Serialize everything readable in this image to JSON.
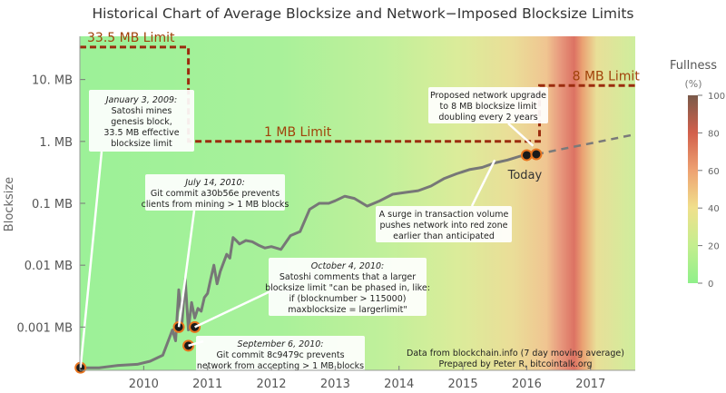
{
  "chart_data": {
    "type": "line",
    "title": "Historical Chart of Average Blocksize and Network−Imposed Blocksize Limits",
    "ylabel": "Blocksize",
    "y_scale": "log",
    "y_unit": "MB",
    "ylim": [
      0.0002,
      50
    ],
    "xlim": [
      2009.0,
      2017.7
    ],
    "x_ticks": [
      "2010",
      "2011",
      "2012",
      "2013",
      "2014",
      "2015",
      "2016",
      "2017"
    ],
    "y_ticks": [
      "0.001 MB",
      "0.01 MB",
      "0.1 MB",
      "1. MB",
      "10. MB"
    ],
    "colorbar": {
      "title": "Fullness",
      "unit": "(%)",
      "ticks": [
        "100",
        "80",
        "60",
        "40",
        "20",
        "0"
      ]
    },
    "series": [
      {
        "x": [
          2009.0,
          2009.3,
          2009.6,
          2009.9,
          2010.1,
          2010.3,
          2010.45,
          2010.5,
          2010.55,
          2010.6,
          2010.65,
          2010.7,
          2010.75,
          2010.8,
          2010.85,
          2010.9,
          2010.95,
          2011.0,
          2011.05,
          2011.1,
          2011.15,
          2011.2,
          2011.3,
          2011.35,
          2011.4,
          2011.45,
          2011.5,
          2011.6,
          2011.7,
          2011.8,
          2011.9,
          2012.0,
          2012.15,
          2012.3,
          2012.45,
          2012.6,
          2012.75,
          2012.9,
          2013.0,
          2013.15,
          2013.3,
          2013.5,
          2013.7,
          2013.9,
          2014.1,
          2014.3,
          2014.5,
          2014.7,
          2014.9,
          2015.1,
          2015.3,
          2015.5,
          2015.7,
          2015.9,
          2016.0,
          2016.15
        ],
        "y": [
          0.00022,
          0.00022,
          0.00024,
          0.00025,
          0.00028,
          0.00035,
          0.0009,
          0.0006,
          0.004,
          0.0012,
          0.006,
          0.0009,
          0.0025,
          0.0014,
          0.002,
          0.0018,
          0.003,
          0.0035,
          0.006,
          0.01,
          0.005,
          0.008,
          0.015,
          0.013,
          0.028,
          0.025,
          0.022,
          0.025,
          0.024,
          0.021,
          0.019,
          0.02,
          0.018,
          0.03,
          0.035,
          0.08,
          0.1,
          0.1,
          0.11,
          0.13,
          0.12,
          0.09,
          0.11,
          0.14,
          0.15,
          0.16,
          0.19,
          0.25,
          0.3,
          0.35,
          0.38,
          0.45,
          0.5,
          0.58,
          0.6,
          0.62
        ]
      }
    ],
    "projection": {
      "x": [
        2016.15,
        2017.7
      ],
      "y": [
        0.62,
        1.3
      ]
    },
    "limit_step": {
      "x": [
        2009.0,
        2010.7,
        2010.7,
        2016.2,
        2016.2,
        2017.7
      ],
      "y": [
        33.5,
        33.5,
        1,
        1,
        8,
        8
      ]
    },
    "limit_labels": [
      {
        "text": "33.5 MB Limit",
        "x": 2009.0,
        "y": 33.5
      },
      {
        "text": "1 MB Limit",
        "x": 2012.3,
        "y": 1
      },
      {
        "text": "8 MB Limit",
        "x": 2016.6,
        "y": 8
      }
    ],
    "markers": [
      {
        "x": 2009.01,
        "y": 0.00022
      },
      {
        "x": 2010.55,
        "y": 0.001
      },
      {
        "x": 2010.7,
        "y": 0.0005
      },
      {
        "x": 2010.8,
        "y": 0.001
      },
      {
        "x": 2016.0,
        "y": 0.6
      },
      {
        "x": 2016.15,
        "y": 0.62
      }
    ],
    "point_labels": [
      {
        "text": "Today",
        "x": 2016.0,
        "y": 0.6
      }
    ],
    "annotations": [
      {
        "lines": [
          "January 3, 2009:",
          "Satoshi mines",
          "genesis block,",
          "33.5 MB effective",
          "blocksize limit"
        ],
        "italic_first": true,
        "target": [
          2009.01,
          0.00022
        ]
      },
      {
        "lines": [
          "July 14, 2010:",
          "Git commit a30b56e prevents",
          "clients from mining > 1 MB blocks"
        ],
        "italic_first": true,
        "target": [
          2010.55,
          0.001
        ]
      },
      {
        "lines": [
          "October 4, 2010:",
          "Satoshi comments that a larger",
          "blocksize limit \"can be phased in, like:",
          "if (blocknumber > 115000)",
          "maxblocksize = largerlimit\""
        ],
        "italic_first": true,
        "target": [
          2010.8,
          0.001
        ]
      },
      {
        "lines": [
          "September 6, 2010:",
          "Git commit 8c9479c prevents",
          "network from accepting > 1 MB blocks"
        ],
        "italic_first": true,
        "target": [
          2010.7,
          0.0005
        ]
      },
      {
        "lines": [
          "A surge in transaction volume",
          "pushes network into red zone",
          "earlier than anticipated"
        ],
        "italic_first": false,
        "target": [
          2015.5,
          0.5
        ]
      },
      {
        "lines": [
          "Proposed network upgrade",
          "to 8 MB blocksize limit",
          "doubling every 2 years"
        ],
        "italic_first": false,
        "target": [
          2016.1,
          0.85
        ]
      }
    ],
    "footer": [
      "Data from blockchain.info (7 day moving average)",
      "Prepared by Peter R, bitcointalk.org"
    ],
    "colors": {
      "series": "#777777",
      "limit": "#9b2c0e",
      "limit_label": "#a0420a",
      "projection": "#7a7a7a",
      "marker_fill": "#1a1a1a",
      "marker_ring": "#e8741e"
    }
  }
}
